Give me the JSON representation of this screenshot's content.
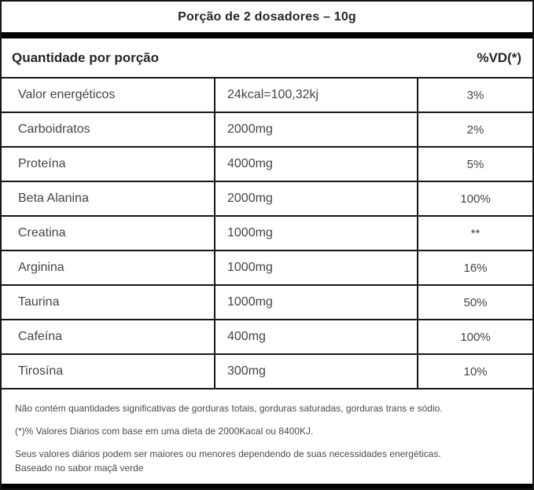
{
  "title": "Porção de 2 dosadores – 10g",
  "header": {
    "quantity_label": "Quantidade por porção",
    "dv_label": "%VD(*)"
  },
  "rows": [
    {
      "name": "Valor energéticos",
      "amount": "24kcal=100,32kj",
      "dv": "3%"
    },
    {
      "name": "Carboidratos",
      "amount": "2000mg",
      "dv": "2%"
    },
    {
      "name": "Proteína",
      "amount": "4000mg",
      "dv": "5%"
    },
    {
      "name": "Beta Alanina",
      "amount": "2000mg",
      "dv": "100%"
    },
    {
      "name": "Creatina",
      "amount": "1000mg",
      "dv": "**"
    },
    {
      "name": "Arginina",
      "amount": "1000mg",
      "dv": "16%"
    },
    {
      "name": "Taurina",
      "amount": "1000mg",
      "dv": "50%"
    },
    {
      "name": "Cafeína",
      "amount": "400mg",
      "dv": "100%"
    },
    {
      "name": "Tirosína",
      "amount": "300mg",
      "dv": "10%"
    }
  ],
  "footnotes": [
    "Não contém quantidades significativas de gorduras totais, gorduras saturadas, gorduras trans e sódio.",
    "(*)% Valores Diários com base em uma dieta de 2000Kacal ou 8400KJ.",
    "Seus valores diários podem ser maiores ou menores dependendo de suas necessidades energéticas.\nBaseado no sabor maçã verde"
  ],
  "colors": {
    "background": "#ffffff",
    "border": "#161616",
    "text": "#3d3d3d",
    "heading_text": "#262626"
  }
}
